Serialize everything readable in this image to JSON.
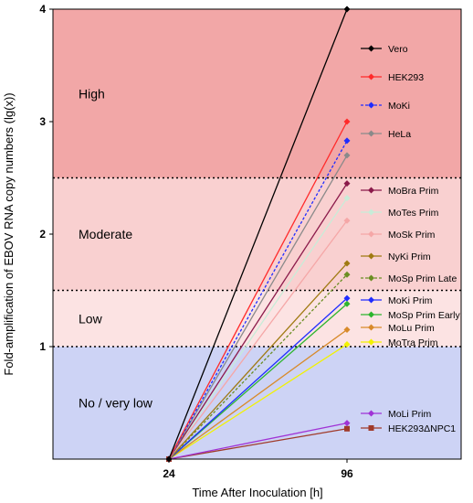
{
  "chart_data": {
    "type": "line",
    "xlabel": "Time After Inoculation [h]",
    "ylabel": "Fold-amplification of EBOV RNA copy numbers (lg(x))",
    "x": [
      "24",
      "96"
    ],
    "yticks": [
      "1",
      "2",
      "3",
      "4"
    ],
    "ylim": [
      0,
      4
    ],
    "grid": false,
    "legend_position": "right",
    "bands": [
      {
        "label": "High",
        "from": 2.5,
        "to": 4.0,
        "color": "#f2a7a7"
      },
      {
        "label": "Moderate",
        "from": 1.5,
        "to": 2.5,
        "color": "#f9d0d0"
      },
      {
        "label": "Low",
        "from": 1.0,
        "to": 1.5,
        "color": "#fce3e3"
      },
      {
        "label": "No / very low",
        "from": 0.0,
        "to": 1.0,
        "color": "#cdd3f5"
      }
    ],
    "thresholds": [
      1.0,
      1.5,
      2.5
    ],
    "series": [
      {
        "name": "Vero",
        "color": "#000000",
        "marker": "diamond",
        "dash": false,
        "values": [
          0,
          4.0
        ]
      },
      {
        "name": "HEK293",
        "color": "#ff2a2a",
        "marker": "diamond",
        "dash": false,
        "values": [
          0,
          3.0
        ]
      },
      {
        "name": "MoKi",
        "color": "#1f2cff",
        "marker": "diamond",
        "dash": true,
        "values": [
          0,
          2.83
        ]
      },
      {
        "name": "HeLa",
        "color": "#8a8a8a",
        "marker": "diamond",
        "dash": false,
        "values": [
          0,
          2.7
        ]
      },
      {
        "name": "MoBra Prim",
        "color": "#8b1a4a",
        "marker": "diamond",
        "dash": false,
        "values": [
          0,
          2.45
        ]
      },
      {
        "name": "MoTes Prim",
        "color": "#c8ecd8",
        "marker": "diamond",
        "dash": false,
        "values": [
          0,
          2.32
        ]
      },
      {
        "name": "MoSk Prim",
        "color": "#f5a7a7",
        "marker": "diamond",
        "dash": false,
        "values": [
          0,
          2.12
        ]
      },
      {
        "name": "NyKi Prim",
        "color": "#a07a12",
        "marker": "diamond",
        "dash": false,
        "values": [
          0,
          1.74
        ]
      },
      {
        "name": "MoSp Prim Late",
        "color": "#6b8e23",
        "marker": "diamond",
        "dash": true,
        "values": [
          0,
          1.64
        ]
      },
      {
        "name": "MoKi Prim",
        "color": "#1f2cff",
        "marker": "diamond",
        "dash": false,
        "values": [
          0,
          1.43
        ]
      },
      {
        "name": "MoSp Prim Early",
        "color": "#2db52d",
        "marker": "diamond",
        "dash": false,
        "values": [
          0,
          1.38
        ]
      },
      {
        "name": "MoLu Prim",
        "color": "#d88a2a",
        "marker": "diamond",
        "dash": false,
        "values": [
          0,
          1.15
        ]
      },
      {
        "name": "MoTra Prim",
        "color": "#f2f200",
        "marker": "diamond",
        "dash": false,
        "values": [
          0,
          1.02
        ]
      },
      {
        "name": "MoLi Prim",
        "color": "#a033d6",
        "marker": "diamond",
        "dash": false,
        "values": [
          0,
          0.32
        ]
      },
      {
        "name": "HEK293ΔNPC1",
        "color": "#a03a2a",
        "marker": "square",
        "dash": false,
        "values": [
          0,
          0.27
        ]
      }
    ]
  }
}
